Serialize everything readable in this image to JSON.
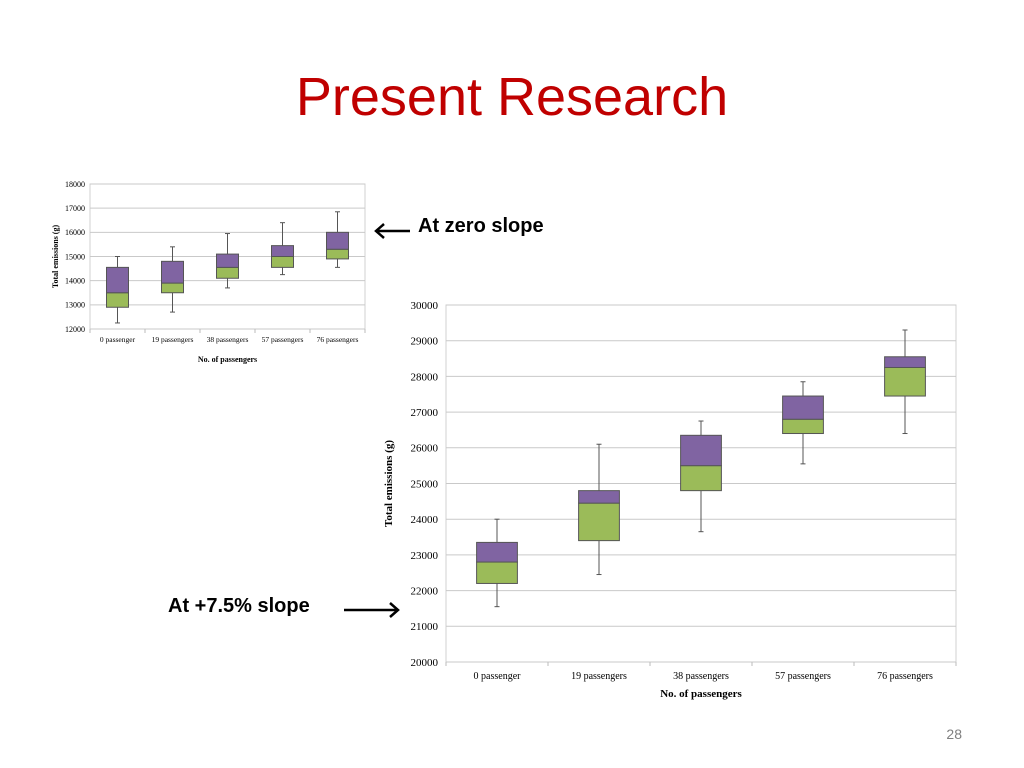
{
  "slide": {
    "title": "Present Research",
    "callout_zero": "At zero slope",
    "callout_slope": "At +7.5% slope",
    "page_number": "28"
  },
  "colors": {
    "title": "#c00000",
    "upper_box": "#8064a2",
    "lower_box": "#9bbb59",
    "grid": "#c9c9c9"
  },
  "chart_data": [
    {
      "type": "box",
      "categories": [
        "0 passenger",
        "19 passengers",
        "38 passengers",
        "57 passengers",
        "76 passengers"
      ],
      "xlabel": "No. of passengers",
      "ylabel": "Total emissions (g)",
      "ylim": [
        12000,
        18000
      ],
      "yticks": [
        12000,
        13000,
        14000,
        15000,
        16000,
        17000,
        18000
      ],
      "grid": true,
      "boxes": [
        {
          "min": 12250,
          "q1": 12900,
          "median": 13500,
          "q3": 14550,
          "max": 15000
        },
        {
          "min": 12700,
          "q1": 13500,
          "median": 13900,
          "q3": 14800,
          "max": 15400
        },
        {
          "min": 13700,
          "q1": 14100,
          "median": 14550,
          "q3": 15100,
          "max": 15950
        },
        {
          "min": 14250,
          "q1": 14550,
          "median": 15000,
          "q3": 15450,
          "max": 16400
        },
        {
          "min": 14550,
          "q1": 14900,
          "median": 15300,
          "q3": 16000,
          "max": 16850
        }
      ]
    },
    {
      "type": "box",
      "categories": [
        "0 passenger",
        "19 passengers",
        "38 passengers",
        "57 passengers",
        "76 passengers"
      ],
      "xlabel": "No. of passengers",
      "ylabel": "Total emissions (g)",
      "ylim": [
        20000,
        30000
      ],
      "yticks": [
        20000,
        21000,
        22000,
        23000,
        24000,
        25000,
        26000,
        27000,
        28000,
        29000,
        30000
      ],
      "grid": true,
      "boxes": [
        {
          "min": 21550,
          "q1": 22200,
          "median": 22800,
          "q3": 23350,
          "max": 24000
        },
        {
          "min": 22450,
          "q1": 23400,
          "median": 24450,
          "q3": 24800,
          "max": 26100
        },
        {
          "min": 23650,
          "q1": 24800,
          "median": 25500,
          "q3": 26350,
          "max": 26750
        },
        {
          "min": 25550,
          "q1": 26400,
          "median": 26800,
          "q3": 27450,
          "max": 27850
        },
        {
          "min": 26400,
          "q1": 27450,
          "median": 28250,
          "q3": 28550,
          "max": 29300
        }
      ]
    }
  ]
}
